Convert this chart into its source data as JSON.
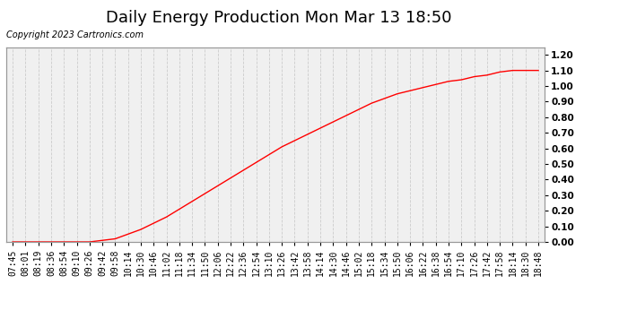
{
  "title": "Daily Energy Production Mon Mar 13 18:50",
  "copyright": "Copyright 2023 Cartronics.com",
  "legend_offpeak_color": "blue",
  "legend_onpeak_color": "red",
  "ylabel_right_ticks": [
    0.0,
    0.1,
    0.2,
    0.3,
    0.4,
    0.5,
    0.6,
    0.7,
    0.8,
    0.9,
    1.0,
    1.1,
    1.2
  ],
  "ylim": [
    0.0,
    1.25
  ],
  "background_color": "#ffffff",
  "plot_bg_color": "#f0f0f0",
  "grid_color": "#cccccc",
  "line_color": "red",
  "xtick_labels": [
    "07:45",
    "08:01",
    "08:19",
    "08:36",
    "08:54",
    "09:10",
    "09:26",
    "09:42",
    "09:58",
    "10:14",
    "10:30",
    "10:46",
    "11:02",
    "11:18",
    "11:34",
    "11:50",
    "12:06",
    "12:22",
    "12:36",
    "12:54",
    "13:10",
    "13:26",
    "13:42",
    "13:58",
    "14:14",
    "14:30",
    "14:46",
    "15:02",
    "15:18",
    "15:34",
    "15:50",
    "16:06",
    "16:22",
    "16:38",
    "16:54",
    "17:10",
    "17:26",
    "17:42",
    "17:58",
    "18:14",
    "18:30",
    "18:48"
  ],
  "ydata": [
    0.0,
    0.0,
    0.0,
    0.0,
    0.0,
    0.0,
    0.0,
    0.01,
    0.02,
    0.05,
    0.08,
    0.12,
    0.16,
    0.21,
    0.26,
    0.31,
    0.36,
    0.41,
    0.46,
    0.51,
    0.56,
    0.61,
    0.65,
    0.69,
    0.73,
    0.77,
    0.81,
    0.85,
    0.89,
    0.92,
    0.95,
    0.97,
    0.99,
    1.01,
    1.03,
    1.04,
    1.06,
    1.07,
    1.09,
    1.1,
    1.1,
    1.1
  ],
  "title_fontsize": 13,
  "tick_fontsize": 7,
  "legend_fontsize": 8,
  "copyright_fontsize": 7
}
